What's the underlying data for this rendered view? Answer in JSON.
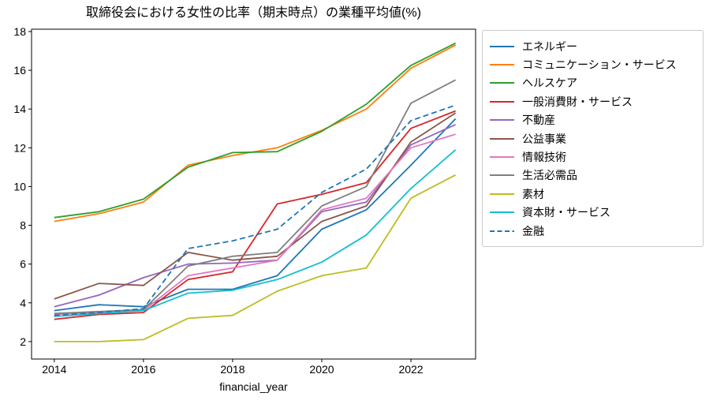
{
  "chart_data": {
    "type": "line",
    "title": "取締役会における女性の比率（期末時点）の業種平均値(%)",
    "xlabel": "financial_year",
    "ylabel": "",
    "x": [
      2014,
      2015,
      2016,
      2017,
      2018,
      2019,
      2020,
      2021,
      2022,
      2023
    ],
    "xlim": [
      2013.49,
      2023.45
    ],
    "ylim": [
      1.1,
      18.12
    ],
    "x_tick_values": [
      2014,
      2016,
      2018,
      2020,
      2022
    ],
    "x_tick_labels": [
      "2014",
      "2016",
      "2018",
      "2020",
      "2022"
    ],
    "y_tick_values": [
      2,
      4,
      6,
      8,
      10,
      12,
      14,
      16,
      18
    ],
    "y_tick_labels": [
      "2",
      "4",
      "6",
      "8",
      "10",
      "12",
      "14",
      "16",
      "18"
    ],
    "grid": false,
    "legend_position": "outside-right",
    "line_width": 1.8,
    "axis_color": "#000000",
    "legend_border_color": "#cccccc",
    "series": [
      {
        "name": "エネルギー",
        "color": "#1f77b4",
        "dash": false,
        "values": [
          3.6,
          3.9,
          3.8,
          4.7,
          4.7,
          5.4,
          7.8,
          8.8,
          11.1,
          13.5
        ]
      },
      {
        "name": "コミュニケーション・サービス",
        "color": "#ff7f0e",
        "dash": false,
        "values": [
          8.2,
          8.6,
          9.2,
          11.1,
          11.6,
          12.0,
          12.9,
          14.0,
          16.1,
          17.3
        ]
      },
      {
        "name": "ヘルスケア",
        "color": "#2ca02c",
        "dash": false,
        "values": [
          8.4,
          8.7,
          9.35,
          11.0,
          11.75,
          11.8,
          12.85,
          14.25,
          16.25,
          17.4
        ]
      },
      {
        "name": "一般消費財・サービス",
        "color": "#d62728",
        "dash": false,
        "values": [
          3.15,
          3.4,
          3.5,
          5.2,
          5.6,
          9.1,
          9.6,
          10.2,
          13.0,
          13.9
        ]
      },
      {
        "name": "不動産",
        "color": "#9467bd",
        "dash": false,
        "values": [
          3.8,
          4.4,
          5.3,
          6.0,
          6.05,
          6.2,
          8.7,
          9.2,
          12.15,
          13.2
        ]
      },
      {
        "name": "公益事業",
        "color": "#8c564b",
        "dash": false,
        "values": [
          4.2,
          5.0,
          4.9,
          6.6,
          6.2,
          6.4,
          8.2,
          9.0,
          12.3,
          13.8
        ]
      },
      {
        "name": "情報技術",
        "color": "#e377c2",
        "dash": false,
        "values": [
          3.4,
          3.5,
          3.6,
          5.4,
          5.8,
          6.2,
          8.8,
          9.4,
          12.0,
          12.7
        ]
      },
      {
        "name": "生活必需品",
        "color": "#7f7f7f",
        "dash": false,
        "values": [
          3.45,
          3.55,
          3.65,
          5.9,
          6.4,
          6.6,
          9.0,
          10.0,
          14.3,
          15.5
        ]
      },
      {
        "name": "素材",
        "color": "#bcbd22",
        "dash": false,
        "values": [
          2.0,
          2.0,
          2.1,
          3.2,
          3.35,
          4.6,
          5.4,
          5.8,
          9.4,
          10.6
        ]
      },
      {
        "name": "資本財・サービス",
        "color": "#17becf",
        "dash": false,
        "values": [
          3.3,
          3.45,
          3.6,
          4.5,
          4.65,
          5.2,
          6.1,
          7.5,
          9.9,
          11.9
        ]
      },
      {
        "name": "金融",
        "color": "#1f77b4",
        "dash": true,
        "values": [
          3.35,
          3.5,
          3.7,
          6.8,
          7.2,
          7.8,
          9.7,
          10.9,
          13.4,
          14.2
        ]
      }
    ]
  }
}
